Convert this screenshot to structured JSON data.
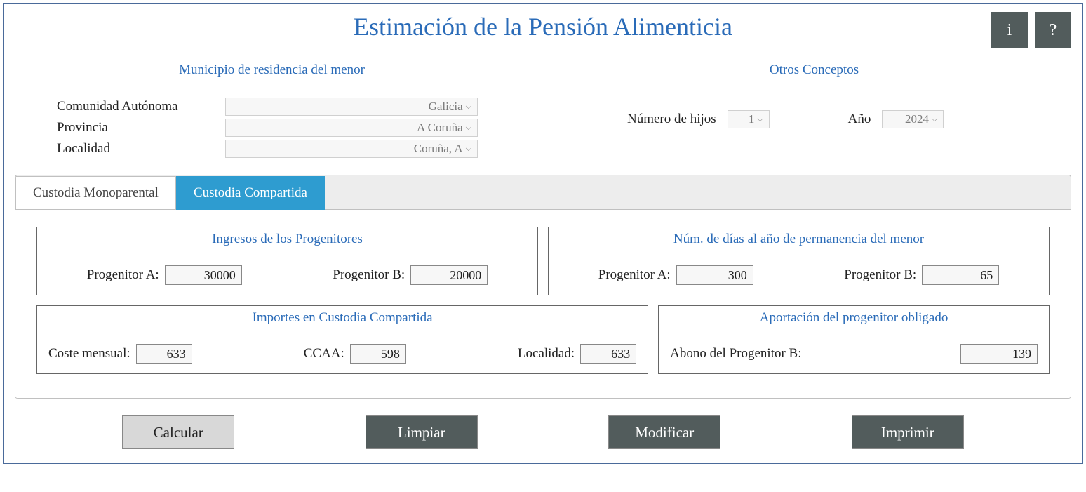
{
  "header": {
    "title": "Estimación de la Pensión Alimenticia",
    "info_label": "i",
    "help_label": "?"
  },
  "municipio": {
    "heading": "Municipio de residencia del menor",
    "comunidad_label": "Comunidad Autónoma",
    "comunidad_value": "Galicia",
    "provincia_label": "Provincia",
    "provincia_value": "A Coruña",
    "localidad_label": "Localidad",
    "localidad_value": "Coruña, A"
  },
  "otros": {
    "heading": "Otros Conceptos",
    "hijos_label": "Número de hijos",
    "hijos_value": "1",
    "ano_label": "Año",
    "ano_value": "2024"
  },
  "tabs": {
    "mono": "Custodia Monoparental",
    "compartida": "Custodia Compartida"
  },
  "panels": {
    "ingresos": {
      "title": "Ingresos de los Progenitores",
      "a_label": "Progenitor A:",
      "a_value": "30000",
      "b_label": "Progenitor B:",
      "b_value": "20000"
    },
    "dias": {
      "title": "Núm. de días al año de permanencia del menor",
      "a_label": "Progenitor A:",
      "a_value": "300",
      "b_label": "Progenitor B:",
      "b_value": "65"
    },
    "importes": {
      "title": "Importes en Custodia Compartida",
      "coste_label": "Coste mensual:",
      "coste_value": "633",
      "ccaa_label": "CCAA:",
      "ccaa_value": "598",
      "localidad_label": "Localidad:",
      "localidad_value": "633"
    },
    "aportacion": {
      "title": "Aportación del progenitor obligado",
      "abono_label": "Abono del Progenitor B:",
      "abono_value": "139"
    }
  },
  "buttons": {
    "calcular": "Calcular",
    "limpiar": "Limpiar",
    "modificar": "Modificar",
    "imprimir": "Imprimir"
  },
  "colors": {
    "primary": "#2a6bb8",
    "tab_active": "#2e9cd0",
    "button_dark": "#525c5c",
    "button_light": "#d8d8d8",
    "border": "#4a6a9a"
  }
}
